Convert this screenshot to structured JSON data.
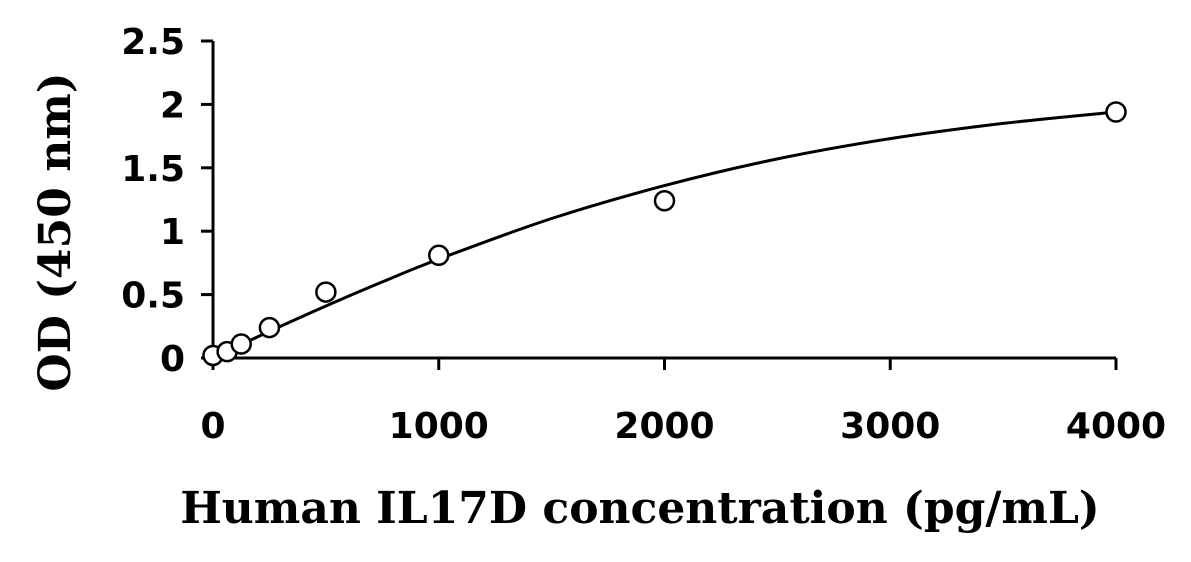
{
  "chart_data": {
    "type": "scatter",
    "title": "",
    "xlabel": "Human IL17D concentration (pg/mL)",
    "ylabel": "OD (450 nm)",
    "xlim": [
      0,
      4000
    ],
    "ylim": [
      0,
      2.5
    ],
    "x_ticks": [
      0,
      1000,
      2000,
      3000,
      4000
    ],
    "x_tick_labels": [
      "0",
      "1000",
      "2000",
      "3000",
      "4000"
    ],
    "y_ticks": [
      0,
      0.5,
      1,
      1.5,
      2,
      2.5
    ],
    "y_tick_labels": [
      "0",
      "0.5",
      "1",
      "1.5",
      "2",
      "2.5"
    ],
    "grid": false,
    "legend": "none",
    "series": [
      {
        "x": [
          0,
          62.5,
          125,
          250,
          500,
          1000,
          2000,
          4000
        ],
        "y": [
          0.02,
          0.05,
          0.11,
          0.24,
          0.52,
          0.81,
          1.24,
          1.94
        ]
      }
    ],
    "fit_curve": {
      "x": [
        0,
        250,
        500,
        750,
        1000,
        1500,
        2000,
        2500,
        3000,
        3500,
        4000
      ],
      "y": [
        0.0,
        0.21,
        0.41,
        0.6,
        0.78,
        1.1,
        1.36,
        1.57,
        1.73,
        1.85,
        1.94
      ]
    }
  }
}
